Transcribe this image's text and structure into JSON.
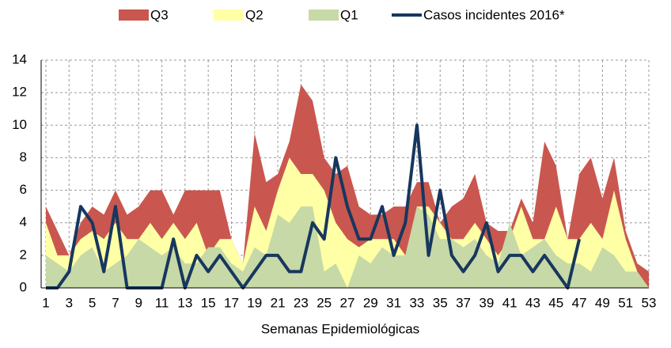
{
  "chart_data": {
    "type": "area",
    "x": [
      1,
      2,
      3,
      4,
      5,
      6,
      7,
      8,
      9,
      10,
      11,
      12,
      13,
      14,
      15,
      16,
      17,
      18,
      19,
      20,
      21,
      22,
      23,
      24,
      25,
      26,
      27,
      28,
      29,
      30,
      31,
      32,
      33,
      34,
      35,
      36,
      37,
      38,
      39,
      40,
      41,
      42,
      43,
      44,
      45,
      46,
      47,
      48,
      49,
      50,
      51,
      52,
      53
    ],
    "xlabel": "Semanas Epidemiológicas",
    "xlim": [
      1,
      53
    ],
    "xticks": [
      1,
      3,
      5,
      7,
      9,
      11,
      13,
      15,
      17,
      19,
      21,
      23,
      25,
      27,
      29,
      31,
      33,
      35,
      37,
      39,
      41,
      43,
      45,
      47,
      49,
      51,
      53
    ],
    "ylim": [
      0,
      14
    ],
    "yticks": [
      0,
      2,
      4,
      6,
      8,
      10,
      12,
      14
    ],
    "grid": true,
    "legend": "top",
    "series": [
      {
        "name": "Q3",
        "type": "area",
        "color": "#c9574f",
        "values": [
          5,
          3.5,
          2,
          4,
          5,
          4.5,
          6,
          4.5,
          5,
          6,
          6,
          4.5,
          6,
          6,
          6,
          6,
          3,
          1.5,
          9.5,
          6.5,
          7,
          9,
          12.5,
          11.5,
          8,
          7,
          7.5,
          5,
          4.5,
          4.5,
          5,
          5,
          6.5,
          6.5,
          4,
          5,
          5.5,
          7,
          4,
          3.5,
          3.5,
          5.5,
          4,
          9,
          7.5,
          3,
          7,
          8,
          5.5,
          8,
          3.5,
          1.5,
          1
        ]
      },
      {
        "name": "Q2",
        "type": "area",
        "color": "#ffffa6",
        "values": [
          4,
          2,
          2,
          3,
          3.5,
          3,
          4,
          3,
          3,
          4,
          3,
          4,
          3,
          4,
          2,
          3,
          3,
          1.5,
          5,
          3.5,
          6,
          8,
          7,
          7,
          6,
          4,
          3,
          2.5,
          3,
          3,
          3,
          2,
          5,
          5,
          4,
          3,
          3,
          4,
          3,
          2,
          3,
          5,
          3,
          3,
          5,
          3,
          3,
          4,
          3,
          6,
          3,
          1,
          0
        ]
      },
      {
        "name": "Q1",
        "type": "area",
        "color": "#c6d9a6",
        "values": [
          2,
          1.5,
          1,
          2,
          2.5,
          1,
          1.5,
          2,
          3,
          2.5,
          2,
          2.5,
          1.5,
          1.5,
          2.5,
          2.5,
          1.5,
          1,
          2.5,
          2,
          4.5,
          4,
          5,
          5,
          1,
          1.5,
          0,
          2,
          1.5,
          2.5,
          2,
          2,
          5,
          4.5,
          3,
          3,
          2.5,
          3,
          2,
          1.5,
          4,
          2,
          2.5,
          3,
          2,
          1.5,
          1.5,
          1,
          2.5,
          2,
          1,
          1,
          0
        ]
      },
      {
        "name": "Casos incidentes 2016*",
        "type": "line",
        "color": "#17375e",
        "values": [
          0,
          0,
          1,
          5,
          4,
          1,
          5,
          0,
          0,
          0,
          0,
          3,
          0,
          2,
          1,
          2,
          1,
          0,
          1,
          2,
          2,
          1,
          1,
          4,
          3,
          8,
          5,
          3,
          3,
          5,
          2,
          4,
          10,
          2,
          6,
          2,
          1,
          2,
          4,
          1,
          2,
          2,
          1,
          2,
          1,
          0,
          3,
          null,
          null,
          null,
          null,
          null,
          null
        ]
      }
    ]
  }
}
